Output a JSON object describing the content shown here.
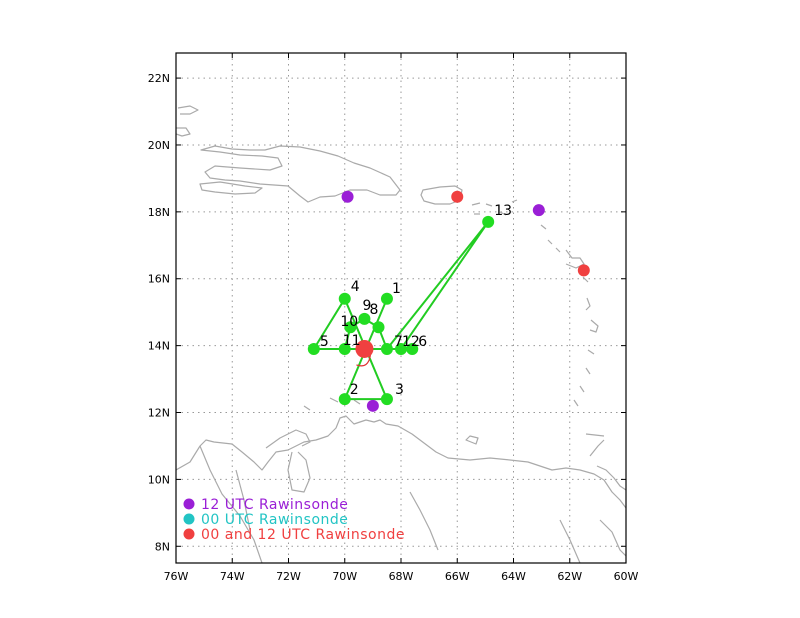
{
  "chart_data": {
    "type": "map",
    "xlim": [
      -76,
      -60
    ],
    "ylim": [
      7.5,
      22.75
    ],
    "xticks": [
      {
        "value": -76,
        "label": "76W"
      },
      {
        "value": -74,
        "label": "74W"
      },
      {
        "value": -72,
        "label": "72W"
      },
      {
        "value": -70,
        "label": "70W"
      },
      {
        "value": -68,
        "label": "68W"
      },
      {
        "value": -66,
        "label": "66W"
      },
      {
        "value": -64,
        "label": "64W"
      },
      {
        "value": -62,
        "label": "62W"
      },
      {
        "value": -60,
        "label": "60W"
      }
    ],
    "yticks": [
      {
        "value": 8,
        "label": "8N"
      },
      {
        "value": 10,
        "label": "10N"
      },
      {
        "value": 12,
        "label": "12N"
      },
      {
        "value": 14,
        "label": "14N"
      },
      {
        "value": 16,
        "label": "16N"
      },
      {
        "value": 18,
        "label": "18N"
      },
      {
        "value": 20,
        "label": "20N"
      },
      {
        "value": 22,
        "label": "22N"
      }
    ],
    "grid": true,
    "colors": {
      "track": "#22cc22",
      "point": "#22dd22",
      "rawinsonde_12": "#9a1fd6",
      "rawinsonde_00": "#22c4c4",
      "rawinsonde_both": "#f04040",
      "coast": "#aaaaaa",
      "grid": "#999999"
    },
    "points": [
      {
        "label": "1",
        "lon": -68.5,
        "lat": 15.4
      },
      {
        "label": "2",
        "lon": -70.0,
        "lat": 12.4
      },
      {
        "label": "3",
        "lon": -68.5,
        "lat": 12.4
      },
      {
        "label": "4",
        "lon": -70.0,
        "lat": 15.4
      },
      {
        "label": "5",
        "lon": -71.1,
        "lat": 13.9
      },
      {
        "label": "6",
        "lon": -67.6,
        "lat": 13.9
      },
      {
        "label": "7",
        "lon": -68.5,
        "lat": 13.9
      },
      {
        "label": "8",
        "lon": -68.8,
        "lat": 14.55
      },
      {
        "label": "9",
        "lon": -69.3,
        "lat": 14.8
      },
      {
        "label": "10",
        "lon": -69.8,
        "lat": 14.55
      },
      {
        "label": "11",
        "lon": -70.0,
        "lat": 13.9
      },
      {
        "label": "12",
        "lon": -68.0,
        "lat": 13.9
      },
      {
        "label": "13",
        "lon": -64.9,
        "lat": 17.7
      }
    ],
    "track_path": [
      "1",
      "2",
      "3",
      "4",
      "5",
      "6",
      "7",
      "8",
      "9",
      "10",
      "11",
      "12",
      "13",
      "7"
    ],
    "storm_center": {
      "lon": -69.3,
      "lat": 13.9
    },
    "rawinsonde_12": [
      {
        "lon": -69.9,
        "lat": 18.45
      },
      {
        "lon": -63.1,
        "lat": 18.05
      },
      {
        "lon": -69.0,
        "lat": 12.2
      }
    ],
    "rawinsonde_00": [],
    "rawinsonde_both": [
      {
        "lon": -66.0,
        "lat": 18.45
      },
      {
        "lon": -61.5,
        "lat": 16.25
      }
    ],
    "legend": [
      {
        "label": "12 UTC Rawinsonde",
        "color": "#9a1fd6"
      },
      {
        "label": "00 UTC Rawinsonde",
        "color": "#22c4c4"
      },
      {
        "label": "00 and 12 UTC Rawinsonde",
        "color": "#f04040"
      }
    ],
    "legend_position": "bottom-left"
  }
}
